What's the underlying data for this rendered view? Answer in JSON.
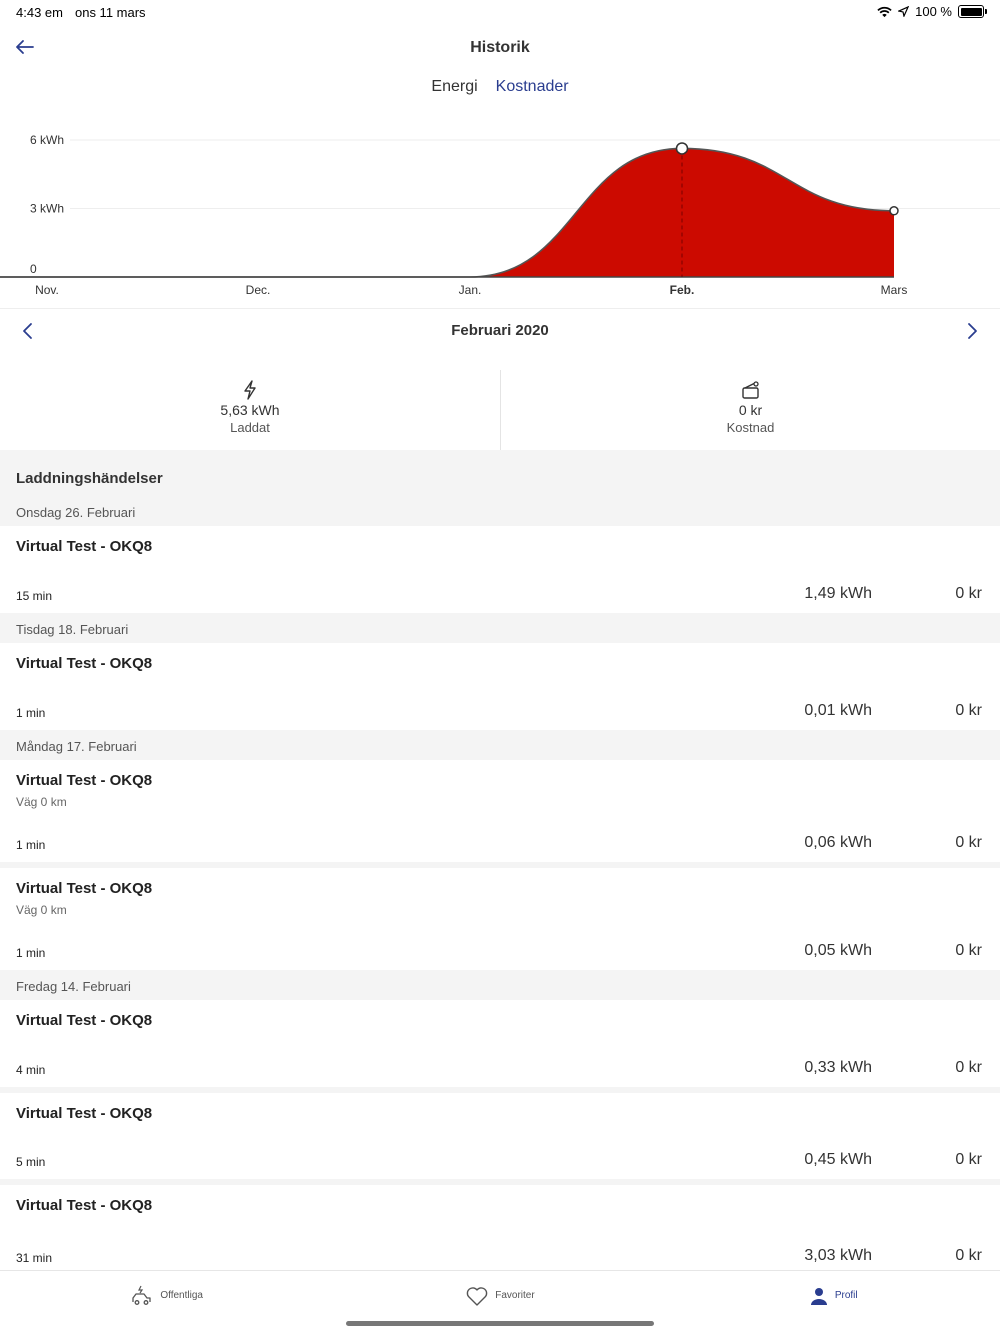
{
  "status": {
    "time": "4:43 em",
    "date": "ons 11 mars",
    "battery": "100 %",
    "battery_level": 1.0
  },
  "header": {
    "title": "Historik"
  },
  "tabs": [
    {
      "label": "Energi",
      "active": false
    },
    {
      "label": "Kostnader",
      "active": true
    }
  ],
  "chart_data": {
    "type": "area",
    "categories": [
      "Nov.",
      "Dec.",
      "Jan.",
      "Feb.",
      "Mars"
    ],
    "values": [
      0,
      0,
      0,
      5.63,
      2.9
    ],
    "ylabels": [
      "6 kWh",
      "3 kWh",
      "0"
    ],
    "yticks": [
      6,
      3,
      0
    ],
    "ylim": [
      0,
      6
    ],
    "selected": "Feb.",
    "fill_color": "#cc0a00",
    "line_color": "#555555",
    "grid": true
  },
  "month_nav": {
    "title": "Februari 2020"
  },
  "summary": {
    "energy": {
      "value": "5,63 kWh",
      "label": "Laddat",
      "icon": "lightning-icon"
    },
    "cost": {
      "value": "0 kr",
      "label": "Kostnad",
      "icon": "wallet-icon"
    }
  },
  "events": {
    "header": "Laddningshändelser",
    "days": [
      {
        "date": "Onsdag 26. Februari",
        "items": [
          {
            "title": "Virtual Test - OKQ8",
            "sub": "",
            "duration": "15 min",
            "energy": "1,49 kWh",
            "cost": "0 kr"
          }
        ]
      },
      {
        "date": "Tisdag 18. Februari",
        "items": [
          {
            "title": "Virtual Test - OKQ8",
            "sub": "",
            "duration": "1 min",
            "energy": "0,01 kWh",
            "cost": "0 kr"
          }
        ]
      },
      {
        "date": "Måndag 17. Februari",
        "items": [
          {
            "title": "Virtual Test - OKQ8",
            "sub": "Väg 0 km",
            "duration": "1 min",
            "energy": "0,06 kWh",
            "cost": "0 kr"
          },
          {
            "title": "Virtual Test - OKQ8",
            "sub": "Väg 0 km",
            "duration": "1 min",
            "energy": "0,05 kWh",
            "cost": "0 kr"
          }
        ]
      },
      {
        "date": "Fredag 14. Februari",
        "items": [
          {
            "title": "Virtual Test - OKQ8",
            "sub": "",
            "duration": "4 min",
            "energy": "0,33 kWh",
            "cost": "0 kr"
          },
          {
            "title": "Virtual Test - OKQ8",
            "sub": "",
            "duration": "5 min",
            "energy": "0,45 kWh",
            "cost": "0 kr"
          },
          {
            "title": "Virtual Test - OKQ8",
            "sub": "",
            "duration": "31 min",
            "energy": "3,03 kWh",
            "cost": "0 kr"
          }
        ]
      }
    ]
  },
  "tabbar": [
    {
      "label": "Offentliga",
      "icon": "charging-car-icon",
      "active": false
    },
    {
      "label": "Favoriter",
      "icon": "heart-icon",
      "active": false
    },
    {
      "label": "Profil",
      "icon": "person-icon",
      "active": true
    }
  ],
  "colors": {
    "accent": "#2a3d8f",
    "chart_fill": "#cc0a00",
    "section_bg": "#f4f4f4"
  }
}
